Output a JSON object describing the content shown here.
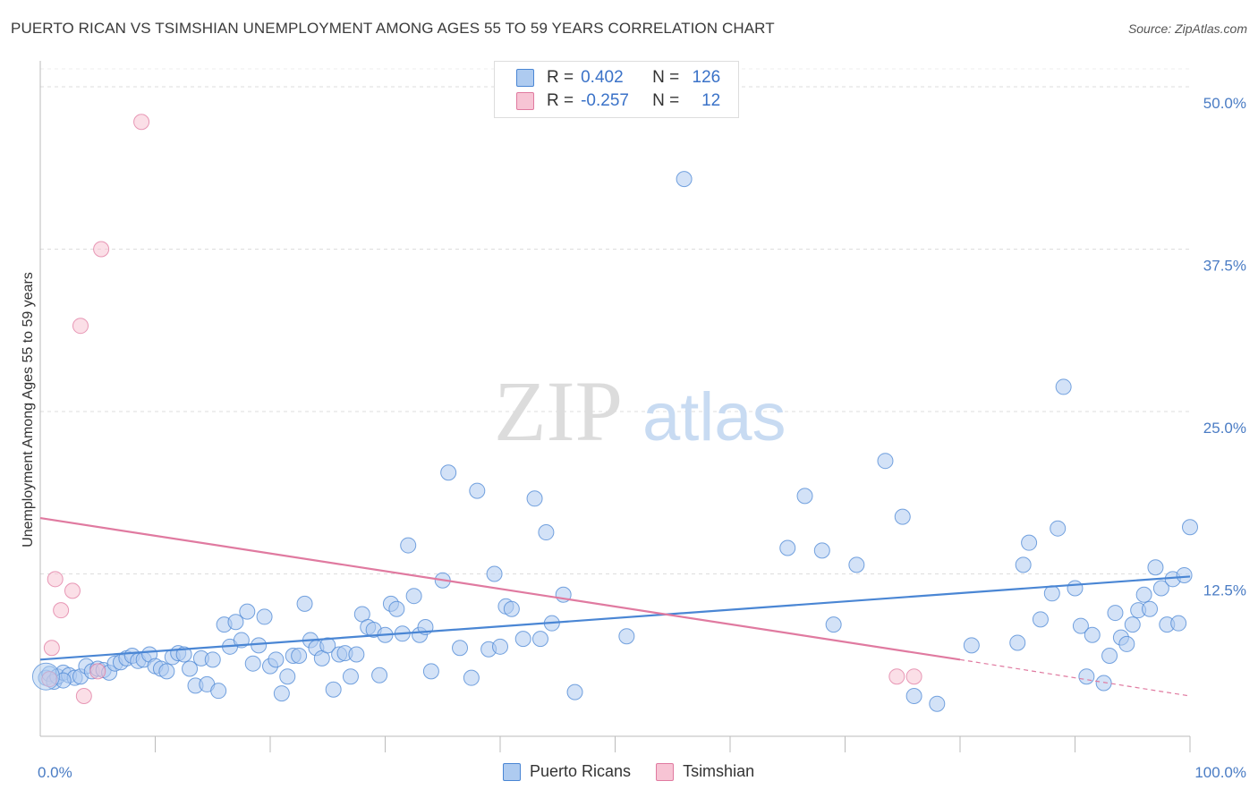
{
  "title": "PUERTO RICAN VS TSIMSHIAN UNEMPLOYMENT AMONG AGES 55 TO 59 YEARS CORRELATION CHART",
  "source": "Source: ZipAtlas.com",
  "watermark": {
    "zip": "ZIP",
    "atlas": "atlas"
  },
  "legend": {
    "r_label": "R =",
    "n_label": "N =",
    "series": [
      {
        "name": "Puerto Ricans",
        "r": "0.402",
        "n": "126",
        "color": "#4a86d4",
        "fill": "#aecbf0"
      },
      {
        "name": "Tsimshian",
        "r": "-0.257",
        "n": "12",
        "color": "#e07aa0",
        "fill": "#f7c4d4"
      }
    ]
  },
  "chart_data": {
    "type": "scatter",
    "title": "PUERTO RICAN VS TSIMSHIAN UNEMPLOYMENT AMONG AGES 55 TO 59 YEARS CORRELATION CHART",
    "xlabel": "",
    "ylabel": "Unemployment Among Ages 55 to 59 years",
    "xlim": [
      0,
      100
    ],
    "ylim": [
      0,
      52
    ],
    "x_tick_labels": [
      "0.0%",
      "100.0%"
    ],
    "y_ticks": [
      12.5,
      25.0,
      37.5,
      50.0
    ],
    "y_tick_labels": [
      "12.5%",
      "25.0%",
      "37.5%",
      "50.0%"
    ],
    "grid": true,
    "series": [
      {
        "name": "Puerto Ricans",
        "color": "#4a86d4",
        "trend": {
          "x0": 0,
          "y0": 5.9,
          "x1": 100,
          "y1": 12.3
        },
        "points": [
          [
            0.5,
            4.5
          ],
          [
            0.8,
            4.8
          ],
          [
            1.2,
            4.2
          ],
          [
            1.5,
            4.6
          ],
          [
            2.0,
            4.9
          ],
          [
            2.5,
            4.7
          ],
          [
            3.0,
            4.5
          ],
          [
            3.5,
            4.6
          ],
          [
            4.0,
            5.4
          ],
          [
            4.5,
            5.0
          ],
          [
            5.0,
            5.2
          ],
          [
            5.5,
            5.1
          ],
          [
            6.0,
            4.9
          ],
          [
            6.5,
            5.6
          ],
          [
            7.0,
            5.7
          ],
          [
            7.5,
            6.0
          ],
          [
            8.0,
            6.2
          ],
          [
            8.5,
            5.8
          ],
          [
            9.0,
            5.9
          ],
          [
            9.5,
            6.3
          ],
          [
            10.0,
            5.4
          ],
          [
            10.5,
            5.2
          ],
          [
            11.0,
            5.0
          ],
          [
            11.5,
            6.1
          ],
          [
            12.0,
            6.4
          ],
          [
            12.5,
            6.3
          ],
          [
            13.0,
            5.2
          ],
          [
            13.5,
            3.9
          ],
          [
            14.0,
            6.0
          ],
          [
            14.5,
            4.0
          ],
          [
            15.0,
            5.9
          ],
          [
            15.5,
            3.5
          ],
          [
            16.0,
            8.6
          ],
          [
            16.5,
            6.9
          ],
          [
            17.0,
            8.8
          ],
          [
            17.5,
            7.4
          ],
          [
            18.0,
            9.6
          ],
          [
            18.5,
            5.6
          ],
          [
            19.0,
            7.0
          ],
          [
            19.5,
            9.2
          ],
          [
            20.0,
            5.4
          ],
          [
            20.5,
            5.9
          ],
          [
            21.0,
            3.3
          ],
          [
            21.5,
            4.6
          ],
          [
            22.0,
            6.2
          ],
          [
            22.5,
            6.2
          ],
          [
            23.0,
            10.2
          ],
          [
            23.5,
            7.4
          ],
          [
            24.0,
            6.8
          ],
          [
            24.5,
            6.0
          ],
          [
            25.0,
            7.0
          ],
          [
            25.5,
            3.6
          ],
          [
            26.0,
            6.3
          ],
          [
            26.5,
            6.4
          ],
          [
            27.0,
            4.6
          ],
          [
            27.5,
            6.3
          ],
          [
            28.0,
            9.4
          ],
          [
            28.5,
            8.4
          ],
          [
            29.0,
            8.2
          ],
          [
            29.5,
            4.7
          ],
          [
            30.0,
            7.8
          ],
          [
            30.5,
            10.2
          ],
          [
            31.0,
            9.8
          ],
          [
            31.5,
            7.9
          ],
          [
            32.0,
            14.7
          ],
          [
            32.5,
            10.8
          ],
          [
            33.0,
            7.8
          ],
          [
            33.5,
            8.4
          ],
          [
            34.0,
            5.0
          ],
          [
            35.0,
            12.0
          ],
          [
            35.5,
            20.3
          ],
          [
            36.5,
            6.8
          ],
          [
            37.5,
            4.5
          ],
          [
            38.0,
            18.9
          ],
          [
            39.0,
            6.7
          ],
          [
            39.5,
            12.5
          ],
          [
            40.0,
            6.9
          ],
          [
            40.5,
            10.0
          ],
          [
            41.0,
            9.8
          ],
          [
            42.0,
            7.5
          ],
          [
            43.0,
            18.3
          ],
          [
            43.5,
            7.5
          ],
          [
            44.0,
            15.7
          ],
          [
            44.5,
            8.7
          ],
          [
            45.5,
            10.9
          ],
          [
            46.5,
            3.4
          ],
          [
            51.0,
            7.7
          ],
          [
            56.0,
            42.9
          ],
          [
            65.0,
            14.5
          ],
          [
            66.5,
            18.5
          ],
          [
            68.0,
            14.3
          ],
          [
            69.0,
            8.6
          ],
          [
            71.0,
            13.2
          ],
          [
            73.5,
            21.2
          ],
          [
            75.0,
            16.9
          ],
          [
            76.0,
            3.1
          ],
          [
            78.0,
            2.5
          ],
          [
            81.0,
            7.0
          ],
          [
            85.0,
            7.2
          ],
          [
            85.5,
            13.2
          ],
          [
            86.0,
            14.9
          ],
          [
            87.0,
            9.0
          ],
          [
            88.0,
            11.0
          ],
          [
            88.5,
            16.0
          ],
          [
            89.0,
            26.9
          ],
          [
            90.0,
            11.4
          ],
          [
            90.5,
            8.5
          ],
          [
            91.0,
            4.6
          ],
          [
            91.5,
            7.8
          ],
          [
            92.5,
            4.1
          ],
          [
            93.0,
            6.2
          ],
          [
            93.5,
            9.5
          ],
          [
            94.0,
            7.6
          ],
          [
            94.5,
            7.1
          ],
          [
            95.0,
            8.6
          ],
          [
            95.5,
            9.7
          ],
          [
            96.0,
            10.9
          ],
          [
            96.5,
            9.8
          ],
          [
            97.0,
            13.0
          ],
          [
            97.5,
            11.4
          ],
          [
            98.0,
            8.6
          ],
          [
            98.5,
            12.1
          ],
          [
            99.0,
            8.7
          ],
          [
            99.5,
            12.4
          ],
          [
            100.0,
            16.1
          ],
          [
            2.0,
            4.3
          ]
        ]
      },
      {
        "name": "Tsimshian",
        "color": "#e07aa0",
        "trend": {
          "x0": 0,
          "y0": 16.8,
          "x1": 80,
          "y1": 5.9,
          "dash_x1": 100,
          "dash_y1": 3.1
        },
        "points": [
          [
            0.8,
            4.4
          ],
          [
            1.0,
            6.8
          ],
          [
            1.3,
            12.1
          ],
          [
            1.8,
            9.7
          ],
          [
            2.8,
            11.2
          ],
          [
            3.5,
            31.6
          ],
          [
            3.8,
            3.1
          ],
          [
            5.0,
            5.0
          ],
          [
            5.3,
            37.5
          ],
          [
            8.8,
            47.3
          ],
          [
            74.5,
            4.6
          ],
          [
            76.0,
            4.6
          ]
        ]
      }
    ]
  }
}
